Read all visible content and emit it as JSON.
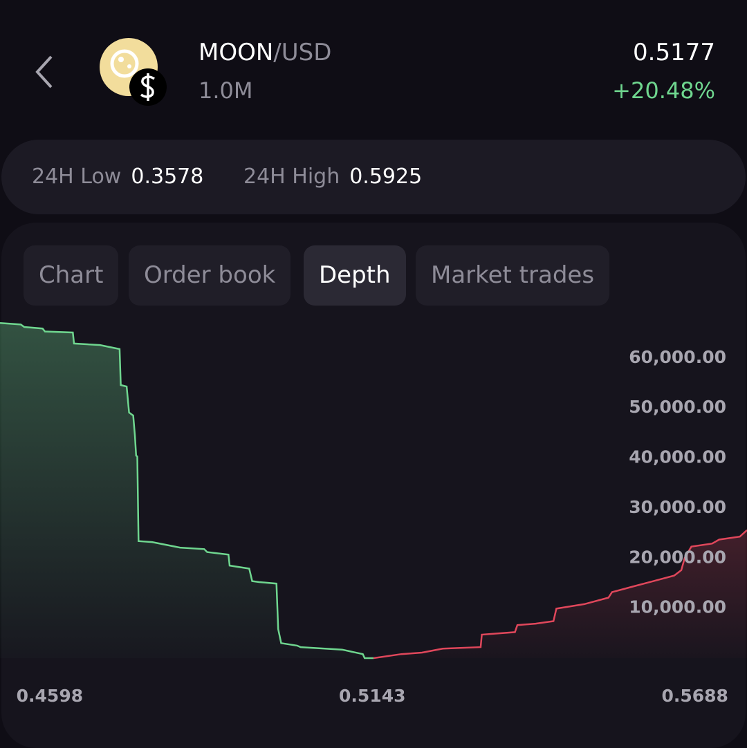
{
  "header": {
    "base": "MOON",
    "quote": "/USD",
    "volume": "1.0M",
    "price": "0.5177",
    "change": "+20.48%"
  },
  "stats": [
    {
      "label": "24H Low",
      "value": "0.3578"
    },
    {
      "label": "24H High",
      "value": "0.5925"
    }
  ],
  "tabs": [
    {
      "label": "Chart",
      "active": false
    },
    {
      "label": "Order book",
      "active": false
    },
    {
      "label": "Depth",
      "active": true
    },
    {
      "label": "Market trades",
      "active": false
    }
  ],
  "chart_data": {
    "type": "depth",
    "xlim": [
      0.4514,
      0.5776
    ],
    "xticks": [
      0.4598,
      0.5143,
      0.5688
    ],
    "ylim": [
      0,
      68000
    ],
    "yticks": [
      {
        "value": 60000,
        "label": "60,000.00"
      },
      {
        "value": 50000,
        "label": "50,000.00"
      },
      {
        "value": 40000,
        "label": "40,000.00"
      },
      {
        "value": 30000,
        "label": "30,000.00"
      },
      {
        "value": 20000,
        "label": "20,000.00"
      },
      {
        "value": 10000,
        "label": "10,000.00"
      }
    ],
    "series": [
      {
        "color": "#6fd68f",
        "x": [
          0.4514,
          0.4549,
          0.4555,
          0.4586,
          0.459,
          0.4637,
          0.4639,
          0.4683,
          0.4707,
          0.4716,
          0.4718,
          0.4728,
          0.4732,
          0.4739,
          0.4742,
          0.4744,
          0.4746,
          0.4748,
          0.4771,
          0.4818,
          0.4859,
          0.4864,
          0.49,
          0.4902,
          0.4935,
          0.494,
          0.4952,
          0.4981,
          0.4984,
          0.4989,
          0.5016,
          0.5022,
          0.5092,
          0.5127,
          0.513,
          0.5145
        ],
        "values": [
          67000,
          66700,
          66200,
          65900,
          65300,
          65100,
          62900,
          62600,
          62000,
          61800,
          54600,
          54300,
          49100,
          48500,
          44400,
          40500,
          40300,
          23400,
          23200,
          22100,
          21800,
          21200,
          20700,
          18500,
          17900,
          15400,
          15200,
          14900,
          5800,
          3000,
          2500,
          2200,
          1700,
          800,
          0,
          0
        ]
      },
      {
        "color": "#e0475b",
        "x": [
          0.5145,
          0.5192,
          0.5227,
          0.5262,
          0.5326,
          0.5328,
          0.5384,
          0.5388,
          0.5419,
          0.5449,
          0.5454,
          0.5501,
          0.5542,
          0.5548,
          0.5583,
          0.5618,
          0.5653,
          0.5665,
          0.5671,
          0.5682,
          0.5717,
          0.5729,
          0.5764,
          0.5776
        ],
        "values": [
          0,
          800,
          1100,
          1900,
          2200,
          4700,
          5200,
          6600,
          6900,
          7400,
          9900,
          10800,
          12100,
          13200,
          14300,
          15400,
          16500,
          17600,
          20100,
          22300,
          22900,
          23700,
          24300,
          25600
        ]
      }
    ]
  }
}
